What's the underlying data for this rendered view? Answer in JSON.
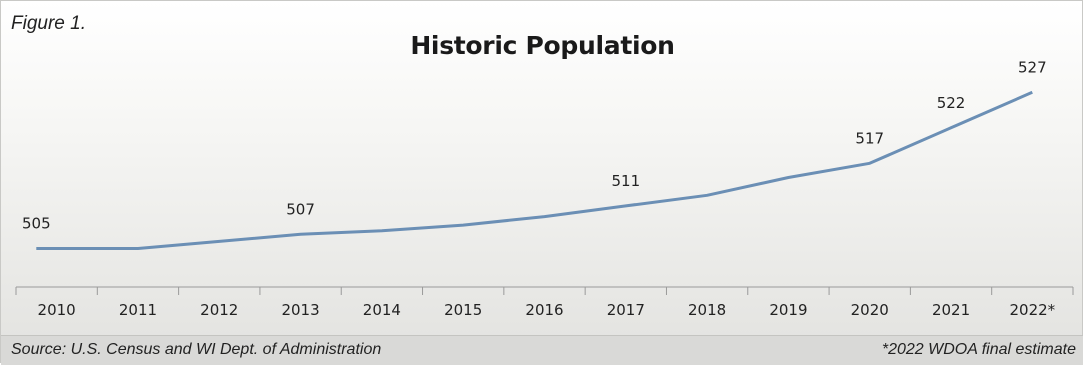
{
  "figure_label": "Figure 1.",
  "footer": {
    "source": "Source: U.S. Census and WI Dept. of Administration",
    "note": "*2022 WDOA final estimate"
  },
  "colors": {
    "line": "#6b8fb5",
    "axis": "#9a9a9a"
  },
  "chart_data": {
    "type": "line",
    "title": "Historic Population",
    "xlabel": "",
    "ylabel": "",
    "categories": [
      "2010",
      "2011",
      "2012",
      "2013",
      "2014",
      "2015",
      "2016",
      "2017",
      "2018",
      "2019",
      "2020",
      "2021",
      "2022*"
    ],
    "series": [
      {
        "values": [
          505,
          505,
          506,
          507,
          507.5,
          508.3,
          509.5,
          511,
          512.5,
          515,
          517,
          522,
          527
        ]
      }
    ],
    "data_labels": [
      {
        "index": 0,
        "text": "505"
      },
      {
        "index": 3,
        "text": "507"
      },
      {
        "index": 7,
        "text": "511"
      },
      {
        "index": 10,
        "text": "517"
      },
      {
        "index": 11,
        "text": "522"
      },
      {
        "index": 12,
        "text": "527"
      }
    ],
    "ylim": [
      500,
      530
    ],
    "grid": false,
    "legend": "none"
  }
}
